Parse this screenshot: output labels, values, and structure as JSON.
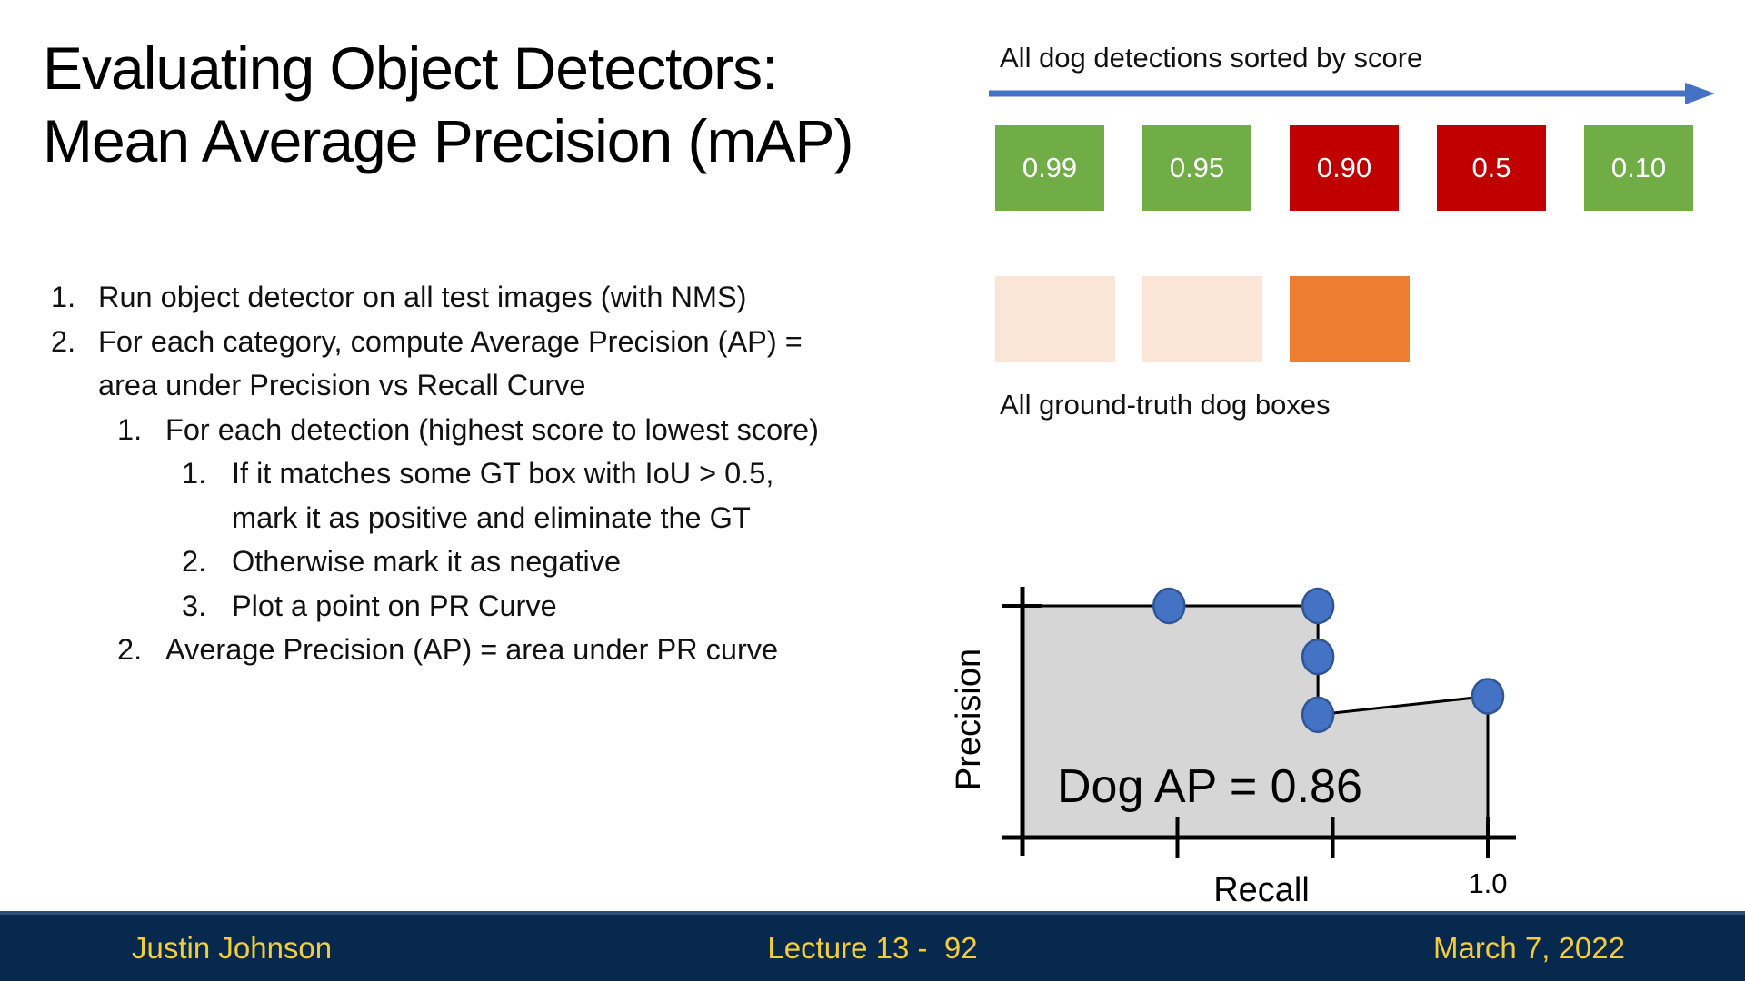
{
  "slide": {
    "title": "Evaluating Object Detectors:\nMean Average Precision (mAP)",
    "steps": [
      {
        "num": "1.",
        "level": 1,
        "text": "Run object detector on all test images (with NMS)"
      },
      {
        "num": "2.",
        "level": 1,
        "text": "For each category, compute Average Precision (AP) =\narea under Precision vs Recall Curve"
      },
      {
        "num": "1.",
        "level": 2,
        "text": "For each detection (highest score to lowest score)"
      },
      {
        "num": "1.",
        "level": 3,
        "text": "If it matches some GT box with IoU > 0.5,\nmark it as positive and eliminate the GT"
      },
      {
        "num": "2.",
        "level": 3,
        "text": "Otherwise mark it as negative"
      },
      {
        "num": "3.",
        "level": 3,
        "text": "Plot a point on PR Curve"
      },
      {
        "num": "2.",
        "level": 2,
        "text": "Average Precision (AP) = area under PR curve"
      }
    ]
  },
  "detections": {
    "heading": "All dog detections sorted by score",
    "arrow_color": "#4472C4",
    "boxes": [
      {
        "score": "0.99",
        "color": "#70AD47"
      },
      {
        "score": "0.95",
        "color": "#70AD47"
      },
      {
        "score": "0.90",
        "color": "#C00000"
      },
      {
        "score": "0.5",
        "color": "#C00000"
      },
      {
        "score": "0.10",
        "color": "#70AD47"
      }
    ]
  },
  "ground_truth": {
    "label": "All ground-truth dog boxes",
    "boxes": [
      {
        "color": "#FBE5D6"
      },
      {
        "color": "#FBE5D6"
      },
      {
        "color": "#ED7D31"
      }
    ]
  },
  "chart_data": {
    "type": "area",
    "title": "Dog AP = 0.86",
    "ap_value": 0.86,
    "xlabel": "Recall",
    "ylabel": "Precision",
    "x_max_label": "1.0",
    "xlim": [
      0,
      1.0
    ],
    "ylim": [
      0,
      1.0
    ],
    "x_ticks": [
      0.333,
      0.667,
      1.0
    ],
    "points": [
      {
        "recall": 0.315,
        "precision": 1.0
      },
      {
        "recall": 0.635,
        "precision": 1.0
      },
      {
        "recall": 0.635,
        "precision": 0.78
      },
      {
        "recall": 0.635,
        "precision": 0.53
      },
      {
        "recall": 1.0,
        "precision": 0.61
      }
    ],
    "curve": [
      [
        0,
        1.0
      ],
      [
        0.635,
        1.0
      ],
      [
        0.635,
        0.53
      ],
      [
        1.0,
        0.61
      ],
      [
        1.0,
        0
      ]
    ],
    "area_outline": [
      [
        0,
        1.0
      ],
      [
        0.635,
        1.0
      ],
      [
        0.635,
        0.53
      ],
      [
        1.0,
        0.61
      ],
      [
        1.0,
        0
      ],
      [
        0,
        0
      ]
    ],
    "area_fill": "#D6D6D6",
    "line_color": "#000000",
    "dot_fill": "#4472C4",
    "dot_stroke": "#2F5597"
  },
  "footer": {
    "author": "Justin Johnson",
    "lecture": "Lecture 13 -  92",
    "date": "March 7, 2022",
    "bg": "#07294D",
    "text_color": "#F5CD3A"
  }
}
